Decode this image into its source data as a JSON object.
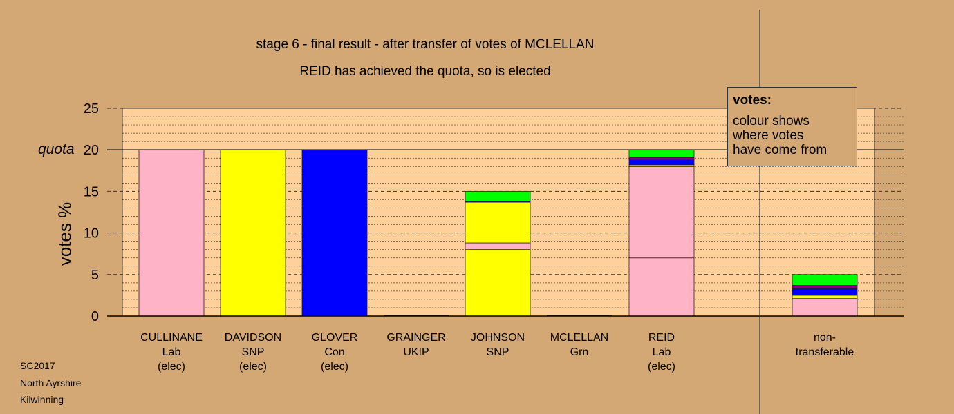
{
  "titles": {
    "line1": "stage 6 - final result - after transfer of votes of MCLELLAN",
    "line2": "REID has achieved the quota, so is elected"
  },
  "colors": {
    "background": "#D4A874",
    "plot_area": "#FFD09A",
    "Lab": "#FFB3C6",
    "SNP": "#FFFF00",
    "Con": "#0000FF",
    "UKIP": "#800080",
    "Grn": "#00FF00"
  },
  "legend": {
    "title": "votes:",
    "body": "colour shows\nwhere votes\nhave come from"
  },
  "footer": [
    "SC2017",
    "North Ayrshire",
    "Kilwinning"
  ],
  "chart_data": {
    "type": "bar",
    "stacked": true,
    "ylabel": "votes %",
    "ylim": [
      0,
      25
    ],
    "yticks": [
      0,
      5,
      10,
      15,
      20,
      25
    ],
    "quota": {
      "label": "quota",
      "value": 20
    },
    "grid": true,
    "legend_position": "top-right",
    "categories": [
      {
        "lines": [
          "CULLINANE",
          "Lab",
          "(elec)"
        ],
        "segments": [
          {
            "source": "Lab",
            "value": 20.0
          }
        ]
      },
      {
        "lines": [
          "DAVIDSON",
          "SNP",
          "(elec)"
        ],
        "segments": [
          {
            "source": "SNP",
            "value": 20.0
          }
        ]
      },
      {
        "lines": [
          "GLOVER",
          "Con",
          "(elec)"
        ],
        "segments": [
          {
            "source": "Con",
            "value": 20.0
          }
        ]
      },
      {
        "lines": [
          "GRAINGER",
          "UKIP"
        ],
        "segments": []
      },
      {
        "lines": [
          "JOHNSON",
          "SNP"
        ],
        "segments": [
          {
            "source": "SNP",
            "value": 8.0
          },
          {
            "source": "Lab",
            "value": 0.8
          },
          {
            "source": "SNP",
            "value": 4.9
          },
          {
            "source": "Con",
            "value": 0.1
          },
          {
            "source": "Grn",
            "value": 1.2
          }
        ]
      },
      {
        "lines": [
          "MCLELLAN",
          "Grn"
        ],
        "segments": []
      },
      {
        "lines": [
          "REID",
          "Lab",
          "(elec)"
        ],
        "segments": [
          {
            "source": "Lab",
            "value": 7.0
          },
          {
            "source": "Lab",
            "value": 11.0
          },
          {
            "source": "SNP",
            "value": 0.2
          },
          {
            "source": "Con",
            "value": 0.6
          },
          {
            "source": "UKIP",
            "value": 0.3
          },
          {
            "source": "Grn",
            "value": 0.9
          }
        ]
      },
      {
        "lines": [
          "non-",
          "transferable"
        ],
        "segments": [
          {
            "source": "Lab",
            "value": 2.1
          },
          {
            "source": "SNP",
            "value": 0.4
          },
          {
            "source": "Con",
            "value": 0.8
          },
          {
            "source": "UKIP",
            "value": 0.4
          },
          {
            "source": "Grn",
            "value": 1.3
          }
        ]
      }
    ]
  }
}
